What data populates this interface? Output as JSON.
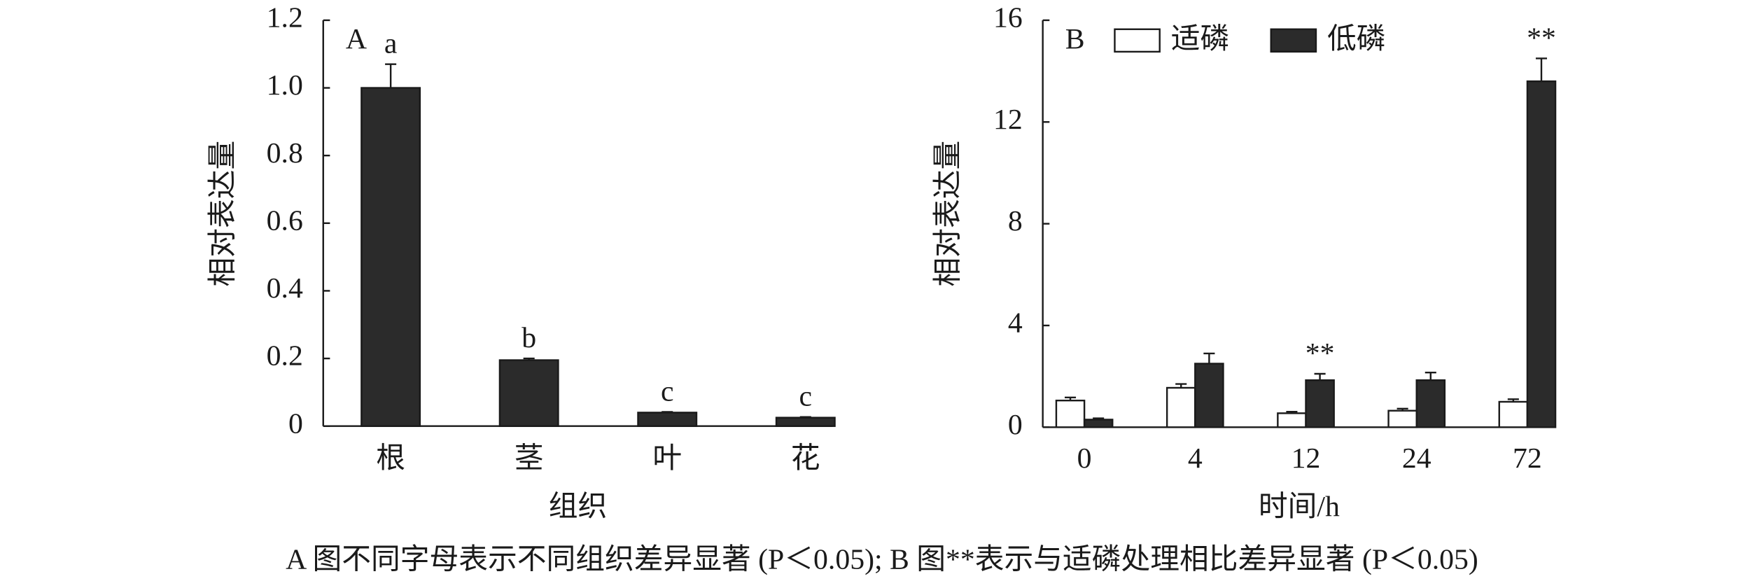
{
  "chart_data": [
    {
      "type": "bar",
      "panel": "A",
      "xlabel": "组织",
      "ylabel": "相对表达量",
      "categories": [
        "根",
        "茎",
        "叶",
        "花"
      ],
      "series": [
        {
          "color": "#2b2b2b",
          "values": [
            1.0,
            0.195,
            0.04,
            0.025
          ],
          "errors": [
            0.07,
            0.005,
            0.002,
            0.002
          ],
          "significance": [
            "a",
            "b",
            "c",
            "c"
          ]
        }
      ],
      "ylim": [
        0,
        1.2
      ],
      "yticks": [
        0,
        0.2,
        0.4,
        0.6,
        0.8,
        {
          "value": 1.0,
          "label": "1.0"
        },
        1.2
      ]
    },
    {
      "type": "bar",
      "panel": "B",
      "xlabel": "时间/h",
      "ylabel": "相对表达量",
      "categories": [
        "0",
        "4",
        "12",
        "24",
        "72"
      ],
      "series": [
        {
          "name": "适磷",
          "color": "#ffffff",
          "values": [
            1.05,
            1.55,
            0.55,
            0.65,
            1.0
          ],
          "errors": [
            0.12,
            0.15,
            0.06,
            0.08,
            0.1
          ],
          "significance": [
            null,
            null,
            null,
            null,
            null
          ]
        },
        {
          "name": "低磷",
          "color": "#2b2b2b",
          "values": [
            0.3,
            2.5,
            1.85,
            1.85,
            13.6
          ],
          "errors": [
            0.05,
            0.4,
            0.25,
            0.3,
            0.9
          ],
          "significance": [
            null,
            null,
            "**",
            null,
            "**"
          ]
        }
      ],
      "ylim": [
        0,
        16
      ],
      "yticks": [
        0,
        4,
        8,
        12,
        16
      ]
    }
  ],
  "caption": "A 图不同字母表示不同组织差异显著 (P＜0.05); B 图**表示与适磷处理相比差异显著 (P＜0.05)"
}
